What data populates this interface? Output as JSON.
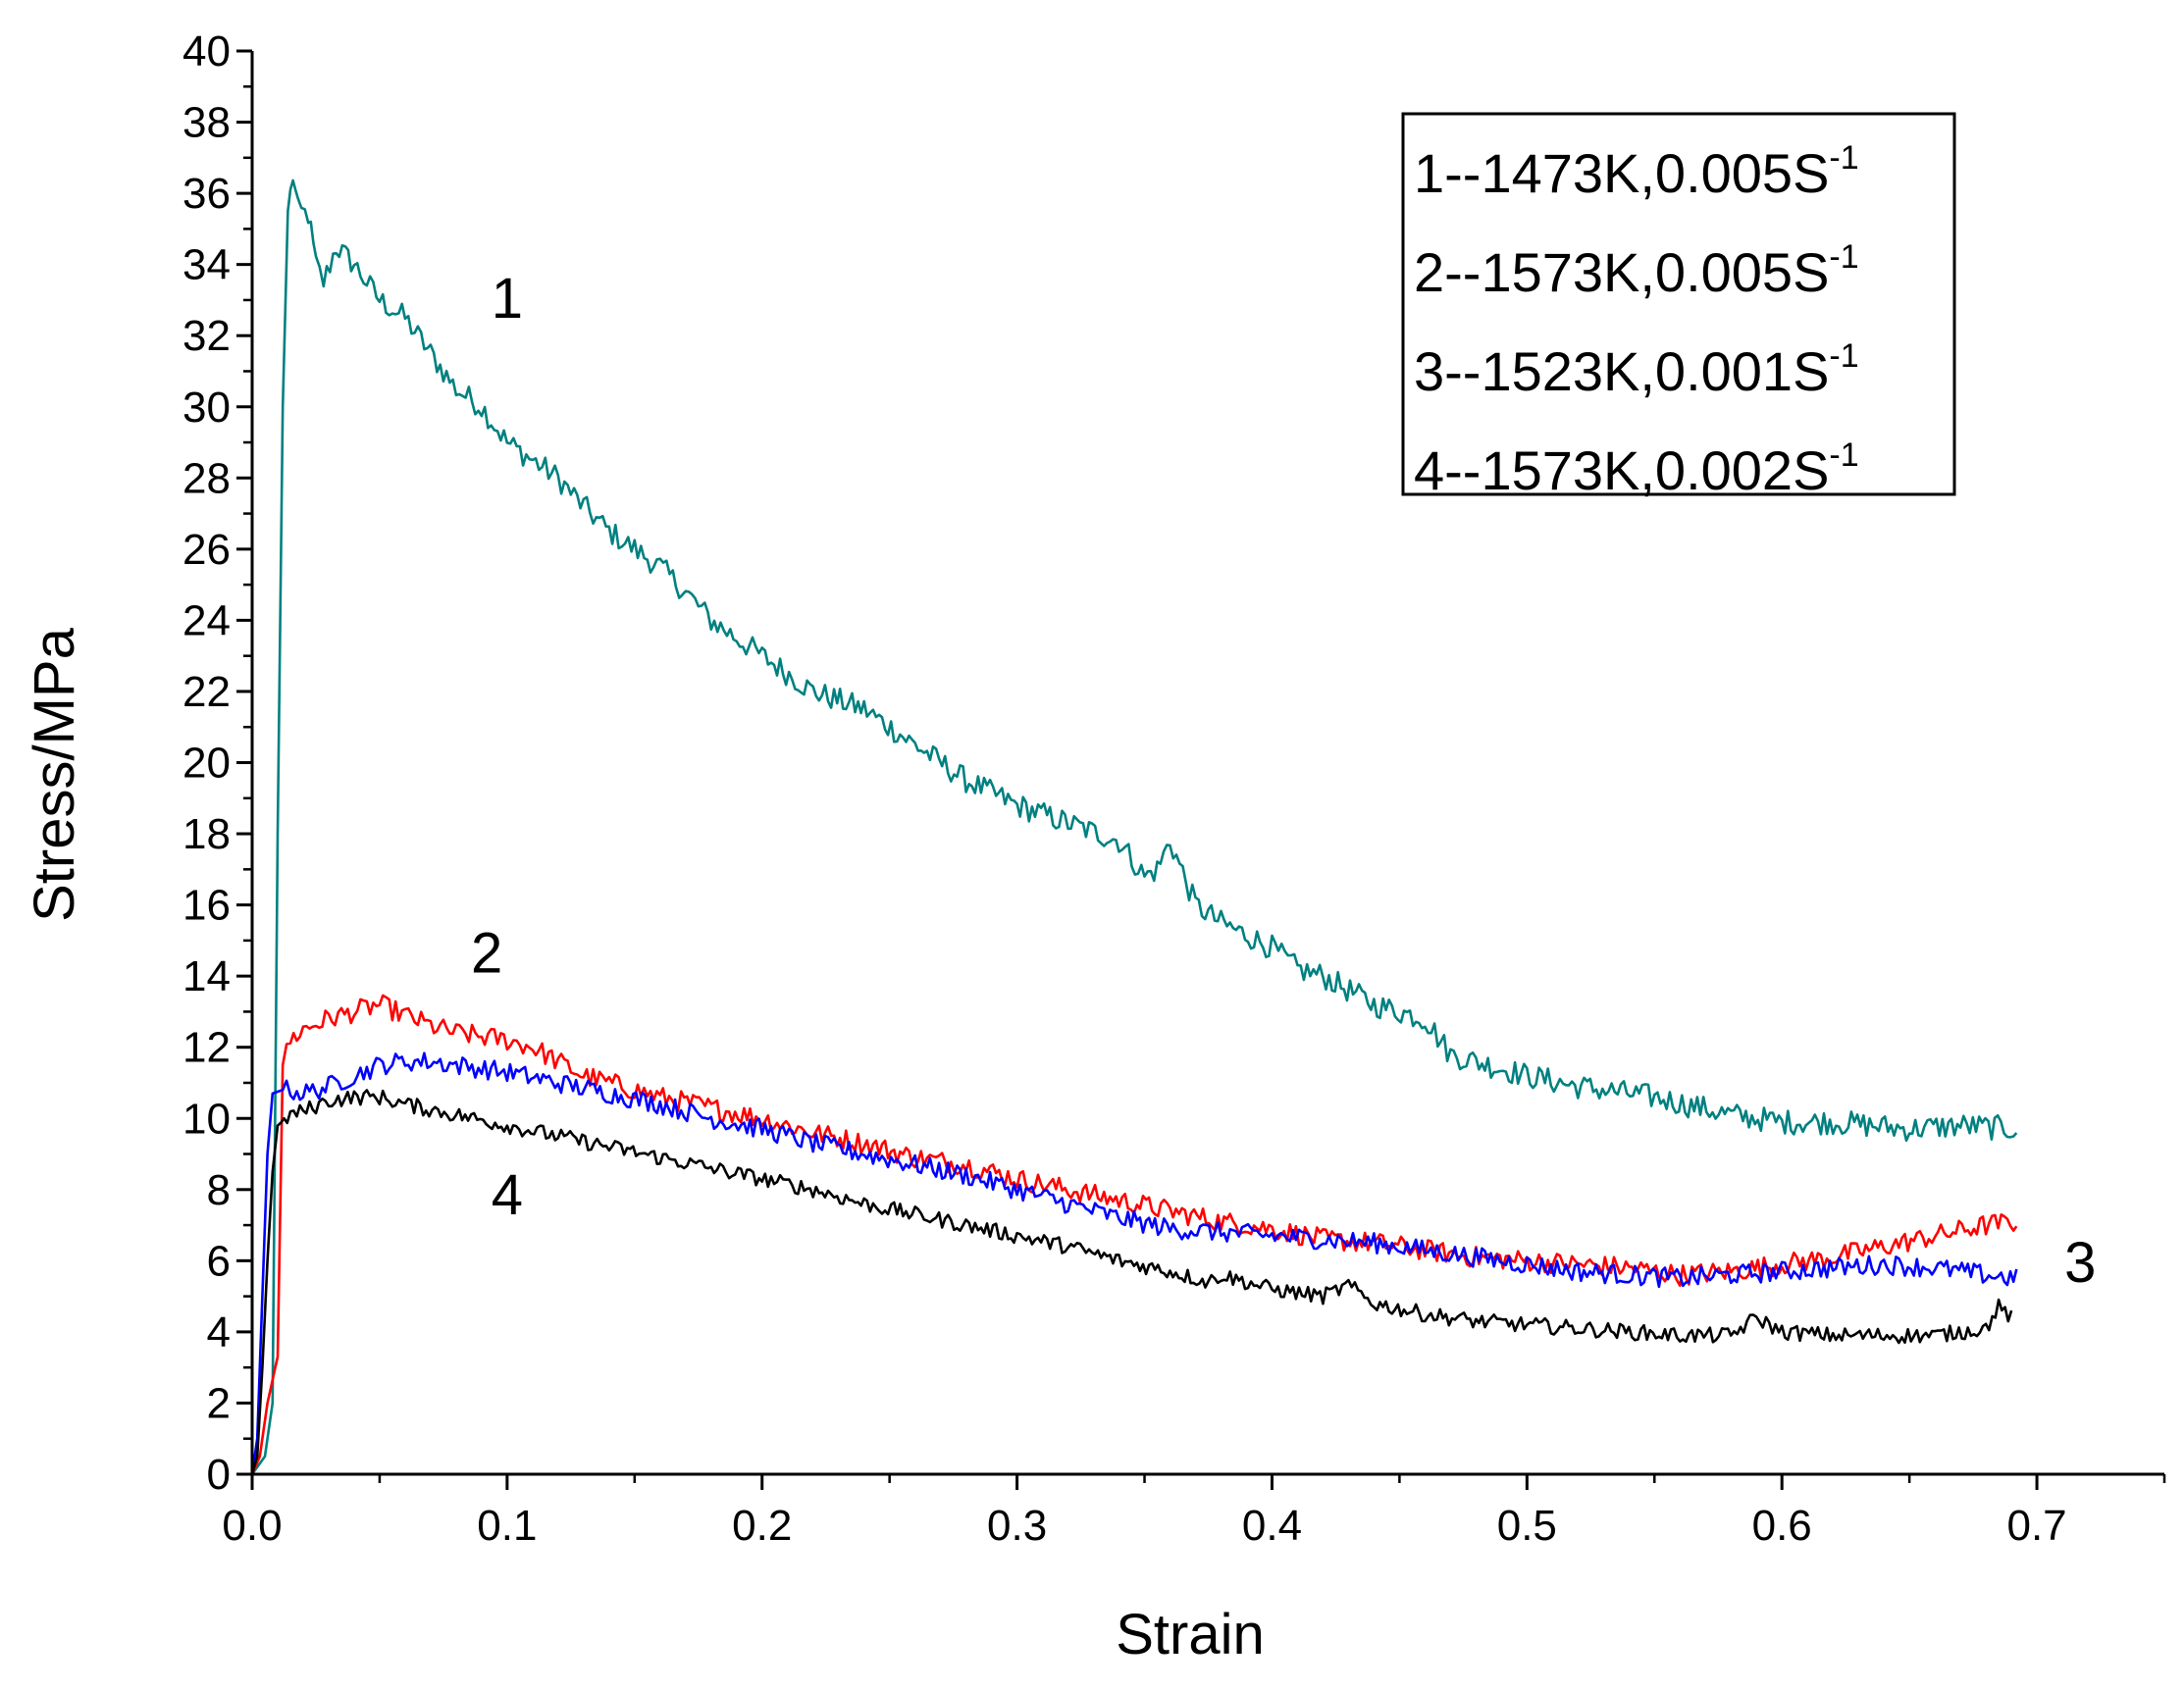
{
  "chart_data": {
    "type": "line",
    "title": "",
    "xlabel": "Strain",
    "ylabel": "Stress/MPa",
    "xlim": [
      0,
      0.75
    ],
    "ylim": [
      0,
      40
    ],
    "x_ticks": [
      0.0,
      0.1,
      0.2,
      0.3,
      0.4,
      0.5,
      0.6,
      0.7
    ],
    "x_tick_labels": [
      "0.0",
      "0.1",
      "0.2",
      "0.3",
      "0.4",
      "0.5",
      "0.6",
      "0.7"
    ],
    "y_ticks": [
      0,
      2,
      4,
      6,
      8,
      10,
      12,
      14,
      16,
      18,
      20,
      22,
      24,
      26,
      28,
      30,
      32,
      34,
      36,
      38,
      40
    ],
    "y_tick_labels": [
      "0",
      "2",
      "4",
      "6",
      "8",
      "10",
      "12",
      "14",
      "16",
      "18",
      "20",
      "22",
      "24",
      "26",
      "28",
      "30",
      "32",
      "34",
      "36",
      "38",
      "40"
    ],
    "grid": false,
    "legend_position": "top-right",
    "series": [
      {
        "name": "1--1473K,0.005S-1",
        "legend_main": "1--1473K,0.005S",
        "legend_sup": "-1",
        "label": "1",
        "label_at": [
          0.1,
          32.5
        ],
        "color": "#008080",
        "noise": 0.35,
        "points": [
          [
            0,
            0
          ],
          [
            0.005,
            0.5
          ],
          [
            0.008,
            2
          ],
          [
            0.01,
            18
          ],
          [
            0.012,
            30
          ],
          [
            0.014,
            35.5
          ],
          [
            0.016,
            36.5
          ],
          [
            0.018,
            35.5
          ],
          [
            0.022,
            35.4
          ],
          [
            0.025,
            34
          ],
          [
            0.028,
            33.5
          ],
          [
            0.033,
            34.5
          ],
          [
            0.04,
            34
          ],
          [
            0.05,
            33
          ],
          [
            0.06,
            32.5
          ],
          [
            0.07,
            31.5
          ],
          [
            0.08,
            30.5
          ],
          [
            0.09,
            30
          ],
          [
            0.1,
            29
          ],
          [
            0.11,
            28.5
          ],
          [
            0.12,
            28
          ],
          [
            0.13,
            27.2
          ],
          [
            0.14,
            26.5
          ],
          [
            0.15,
            26
          ],
          [
            0.16,
            25.5
          ],
          [
            0.17,
            24.8
          ],
          [
            0.18,
            24
          ],
          [
            0.19,
            23.5
          ],
          [
            0.2,
            23
          ],
          [
            0.22,
            22
          ],
          [
            0.24,
            21.5
          ],
          [
            0.26,
            20.5
          ],
          [
            0.28,
            19.5
          ],
          [
            0.3,
            18.8
          ],
          [
            0.32,
            18.3
          ],
          [
            0.34,
            17.8
          ],
          [
            0.35,
            16.8
          ],
          [
            0.355,
            17
          ],
          [
            0.36,
            17.8
          ],
          [
            0.37,
            16
          ],
          [
            0.38,
            15.5
          ],
          [
            0.4,
            14.8
          ],
          [
            0.41,
            14.2
          ],
          [
            0.42,
            14
          ],
          [
            0.44,
            13.2
          ],
          [
            0.46,
            12.8
          ],
          [
            0.47,
            11.8
          ],
          [
            0.48,
            11.6
          ],
          [
            0.5,
            11.2
          ],
          [
            0.52,
            10.9
          ],
          [
            0.55,
            10.6
          ],
          [
            0.58,
            10.1
          ],
          [
            0.6,
            9.9
          ],
          [
            0.62,
            9.9
          ],
          [
            0.65,
            9.7
          ],
          [
            0.67,
            9.8
          ],
          [
            0.692,
            9.7
          ]
        ]
      },
      {
        "name": "2--1573K,0.005S-1",
        "legend_main": "2--1573K,0.005S",
        "legend_sup": "-1",
        "label": "2",
        "label_at": [
          0.092,
          14.1
        ],
        "color": "#ff0000",
        "noise": 0.3,
        "points": [
          [
            0,
            0
          ],
          [
            0.003,
            0.5
          ],
          [
            0.006,
            2
          ],
          [
            0.01,
            3.3
          ],
          [
            0.012,
            11.5
          ],
          [
            0.015,
            12.2
          ],
          [
            0.02,
            12.5
          ],
          [
            0.03,
            12.8
          ],
          [
            0.04,
            13
          ],
          [
            0.05,
            13.2
          ],
          [
            0.06,
            12.9
          ],
          [
            0.07,
            12.6
          ],
          [
            0.08,
            12.4
          ],
          [
            0.09,
            12.3
          ],
          [
            0.1,
            12.2
          ],
          [
            0.11,
            12
          ],
          [
            0.12,
            11.6
          ],
          [
            0.13,
            11.2
          ],
          [
            0.14,
            11
          ],
          [
            0.15,
            10.8
          ],
          [
            0.16,
            10.6
          ],
          [
            0.18,
            10.3
          ],
          [
            0.2,
            10
          ],
          [
            0.22,
            9.6
          ],
          [
            0.24,
            9.3
          ],
          [
            0.26,
            8.9
          ],
          [
            0.28,
            8.7
          ],
          [
            0.3,
            8.3
          ],
          [
            0.32,
            8
          ],
          [
            0.34,
            7.7
          ],
          [
            0.36,
            7.4
          ],
          [
            0.38,
            7.1
          ],
          [
            0.4,
            6.9
          ],
          [
            0.42,
            6.6
          ],
          [
            0.44,
            6.5
          ],
          [
            0.46,
            6.3
          ],
          [
            0.48,
            6.1
          ],
          [
            0.5,
            6
          ],
          [
            0.52,
            5.9
          ],
          [
            0.54,
            5.8
          ],
          [
            0.56,
            5.6
          ],
          [
            0.58,
            5.7
          ],
          [
            0.6,
            5.9
          ],
          [
            0.62,
            6.1
          ],
          [
            0.64,
            6.4
          ],
          [
            0.66,
            6.7
          ],
          [
            0.68,
            7
          ],
          [
            0.692,
            7.1
          ]
        ]
      },
      {
        "name": "3--1523K,0.001S-1",
        "legend_main": "3--1523K,0.001S",
        "legend_sup": "-1",
        "label": "3",
        "label_at": [
          0.717,
          5.4
        ],
        "color": "#0000ff",
        "noise": 0.28,
        "points": [
          [
            0,
            0
          ],
          [
            0.002,
            1
          ],
          [
            0.004,
            5
          ],
          [
            0.006,
            9
          ],
          [
            0.008,
            10.7
          ],
          [
            0.012,
            10.8
          ],
          [
            0.015,
            10.8
          ],
          [
            0.02,
            10.7
          ],
          [
            0.03,
            10.9
          ],
          [
            0.04,
            11.2
          ],
          [
            0.05,
            11.5
          ],
          [
            0.06,
            11.6
          ],
          [
            0.07,
            11.6
          ],
          [
            0.08,
            11.5
          ],
          [
            0.09,
            11.4
          ],
          [
            0.1,
            11.3
          ],
          [
            0.12,
            11
          ],
          [
            0.14,
            10.7
          ],
          [
            0.16,
            10.4
          ],
          [
            0.18,
            10
          ],
          [
            0.2,
            9.7
          ],
          [
            0.22,
            9.3
          ],
          [
            0.24,
            9
          ],
          [
            0.26,
            8.7
          ],
          [
            0.28,
            8.4
          ],
          [
            0.3,
            8
          ],
          [
            0.32,
            7.6
          ],
          [
            0.34,
            7.2
          ],
          [
            0.36,
            6.9
          ],
          [
            0.38,
            6.8
          ],
          [
            0.4,
            6.7
          ],
          [
            0.42,
            6.6
          ],
          [
            0.44,
            6.5
          ],
          [
            0.46,
            6.3
          ],
          [
            0.48,
            6.1
          ],
          [
            0.5,
            5.9
          ],
          [
            0.52,
            5.7
          ],
          [
            0.54,
            5.6
          ],
          [
            0.56,
            5.5
          ],
          [
            0.58,
            5.6
          ],
          [
            0.6,
            5.7
          ],
          [
            0.62,
            5.8
          ],
          [
            0.64,
            5.9
          ],
          [
            0.66,
            5.8
          ],
          [
            0.68,
            5.6
          ],
          [
            0.692,
            5.5
          ]
        ]
      },
      {
        "name": "4--1573K,0.002S-1",
        "legend_main": "4--1573K,0.002S",
        "legend_sup": "-1",
        "label": "4",
        "label_at": [
          0.1,
          7.3
        ],
        "color": "#000000",
        "noise": 0.22,
        "points": [
          [
            0,
            0
          ],
          [
            0.002,
            0.5
          ],
          [
            0.004,
            3
          ],
          [
            0.006,
            6
          ],
          [
            0.008,
            8.5
          ],
          [
            0.01,
            9.8
          ],
          [
            0.015,
            10.1
          ],
          [
            0.02,
            10.2
          ],
          [
            0.03,
            10.5
          ],
          [
            0.04,
            10.6
          ],
          [
            0.05,
            10.6
          ],
          [
            0.06,
            10.4
          ],
          [
            0.08,
            10.1
          ],
          [
            0.1,
            9.8
          ],
          [
            0.12,
            9.5
          ],
          [
            0.14,
            9.2
          ],
          [
            0.16,
            8.9
          ],
          [
            0.18,
            8.6
          ],
          [
            0.2,
            8.3
          ],
          [
            0.22,
            8
          ],
          [
            0.24,
            7.6
          ],
          [
            0.26,
            7.3
          ],
          [
            0.28,
            7
          ],
          [
            0.3,
            6.7
          ],
          [
            0.32,
            6.4
          ],
          [
            0.34,
            6
          ],
          [
            0.36,
            5.7
          ],
          [
            0.375,
            5.4
          ],
          [
            0.38,
            5.6
          ],
          [
            0.4,
            5.2
          ],
          [
            0.42,
            5
          ],
          [
            0.43,
            5.3
          ],
          [
            0.44,
            4.8
          ],
          [
            0.46,
            4.5
          ],
          [
            0.48,
            4.3
          ],
          [
            0.5,
            4.2
          ],
          [
            0.52,
            4.1
          ],
          [
            0.54,
            4
          ],
          [
            0.56,
            3.9
          ],
          [
            0.58,
            3.9
          ],
          [
            0.59,
            4.4
          ],
          [
            0.6,
            4
          ],
          [
            0.62,
            3.9
          ],
          [
            0.64,
            3.9
          ],
          [
            0.66,
            3.9
          ],
          [
            0.68,
            4.1
          ],
          [
            0.685,
            4.7
          ],
          [
            0.69,
            4.4
          ]
        ]
      }
    ]
  }
}
